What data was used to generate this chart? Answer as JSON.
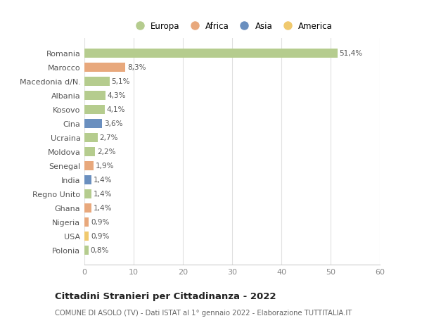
{
  "countries": [
    "Romania",
    "Marocco",
    "Macedonia d/N.",
    "Albania",
    "Kosovo",
    "Cina",
    "Ucraina",
    "Moldova",
    "Senegal",
    "India",
    "Regno Unito",
    "Ghana",
    "Nigeria",
    "USA",
    "Polonia"
  ],
  "values": [
    51.4,
    8.3,
    5.1,
    4.3,
    4.1,
    3.6,
    2.7,
    2.2,
    1.9,
    1.4,
    1.4,
    1.4,
    0.9,
    0.9,
    0.8
  ],
  "labels": [
    "51,4%",
    "8,3%",
    "5,1%",
    "4,3%",
    "4,1%",
    "3,6%",
    "2,7%",
    "2,2%",
    "1,9%",
    "1,4%",
    "1,4%",
    "1,4%",
    "0,9%",
    "0,9%",
    "0,8%"
  ],
  "colors": [
    "#b5cc8e",
    "#e8a87c",
    "#b5cc8e",
    "#b5cc8e",
    "#b5cc8e",
    "#6a8fbf",
    "#b5cc8e",
    "#b5cc8e",
    "#e8a87c",
    "#6a8fbf",
    "#b5cc8e",
    "#e8a87c",
    "#e8a87c",
    "#f0c96e",
    "#b5cc8e"
  ],
  "legend_labels": [
    "Europa",
    "Africa",
    "Asia",
    "America"
  ],
  "legend_colors": [
    "#b5cc8e",
    "#e8a87c",
    "#6a8fbf",
    "#f0c96e"
  ],
  "title": "Cittadini Stranieri per Cittadinanza - 2022",
  "subtitle": "COMUNE DI ASOLO (TV) - Dati ISTAT al 1° gennaio 2022 - Elaborazione TUTTITALIA.IT",
  "xlim": [
    0,
    60
  ],
  "xticks": [
    0,
    10,
    20,
    30,
    40,
    50,
    60
  ],
  "bg_color": "#ffffff",
  "grid_color": "#e0e0e0",
  "bar_height": 0.65
}
